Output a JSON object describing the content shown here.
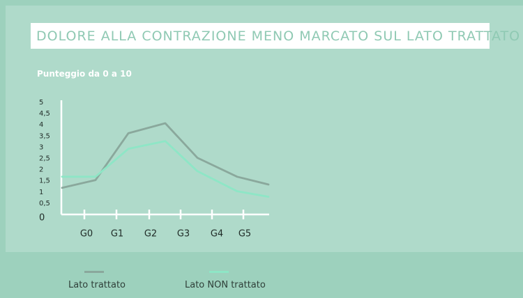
{
  "chart_data": {
    "type": "line",
    "title": "DOLORE ALLA CONTRAZIONE MENO MARCATO SUL LATO TRATTATO",
    "ylabel": "Punteggio da 0 a 10",
    "categories": [
      "G0",
      "G1",
      "G2",
      "G3",
      "G4",
      "G5"
    ],
    "yticks": [
      "5",
      "4,5",
      "4",
      "3,5",
      "3",
      "2,5",
      "2",
      "1,5",
      "1",
      "0,5",
      "0"
    ],
    "ylim": [
      0,
      5
    ],
    "grid": false,
    "legend_position": "bottom",
    "series": [
      {
        "name": "Lato trattato",
        "color": "#8aa89c",
        "x": [
          -0.8,
          0.3,
          1.4,
          2.5,
          3.5,
          4.8,
          5.9
        ],
        "values": [
          1.1,
          1.45,
          3.55,
          4.0,
          2.45,
          1.6,
          1.25
        ]
      },
      {
        "name": "Lato NON trattato",
        "color": "#8ee6c6",
        "x": [
          -0.8,
          0.3,
          1.4,
          2.5,
          3.5,
          4.8,
          5.9
        ],
        "values": [
          1.6,
          1.6,
          2.85,
          3.2,
          1.85,
          0.95,
          0.7
        ]
      }
    ]
  }
}
